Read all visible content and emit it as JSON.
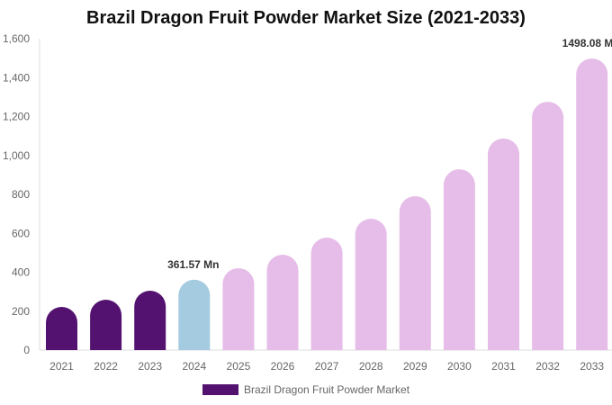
{
  "chart_data": {
    "type": "bar",
    "title": "Brazil Dragon Fruit Powder Market Size (2021-2033)",
    "categories": [
      "2021",
      "2022",
      "2023",
      "2024",
      "2025",
      "2026",
      "2027",
      "2028",
      "2029",
      "2030",
      "2031",
      "2032",
      "2033"
    ],
    "series": [
      {
        "name": "Brazil Dragon Fruit Powder Market",
        "values": [
          222,
          259,
          305,
          361.57,
          421,
          490,
          578,
          675,
          791,
          929,
          1087,
          1276,
          1498.08
        ]
      }
    ],
    "ylim": [
      0,
      1600
    ],
    "yticks": [
      0,
      200,
      400,
      600,
      800,
      1000,
      1200,
      1400,
      1600
    ],
    "ytick_labels": [
      "0",
      "200",
      "400",
      "600",
      "800",
      "1,000",
      "1,200",
      "1,400",
      "1,600"
    ],
    "data_labels": [
      {
        "index": 3,
        "text": "361.57 Mn"
      },
      {
        "index": 12,
        "text": "1498.08 Mn"
      }
    ],
    "colors": {
      "historical": "#541270",
      "current": "#a4cbe0",
      "forecast": "#e6bde8"
    },
    "grid": false,
    "legend": "bottom"
  }
}
